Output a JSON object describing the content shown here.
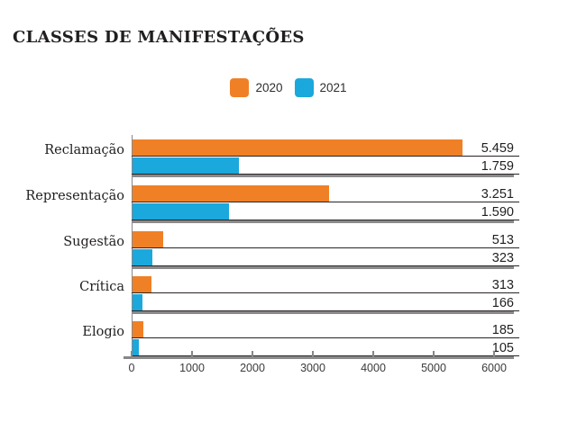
{
  "title": "CLASSES DE MANIFESTAÇÕES",
  "legend": [
    {
      "label": "2020",
      "color": "#F08026"
    },
    {
      "label": "2021",
      "color": "#1BA8DC"
    }
  ],
  "chart_data": {
    "type": "bar",
    "orientation": "horizontal",
    "title": "CLASSES DE MANIFESTAÇÕES",
    "categories": [
      "Reclamação",
      "Representação",
      "Sugestão",
      "Crítica",
      "Elogio"
    ],
    "series": [
      {
        "name": "2020",
        "color": "#F08026",
        "values": [
          5459,
          3251,
          513,
          313,
          185
        ],
        "value_labels": [
          "5.459",
          "3.251",
          "513",
          "313",
          "185"
        ]
      },
      {
        "name": "2021",
        "color": "#1BA8DC",
        "values": [
          1759,
          1590,
          323,
          166,
          105
        ],
        "value_labels": [
          "1.759",
          "1.590",
          "323",
          "166",
          "105"
        ]
      }
    ],
    "x_axis": {
      "min": 0,
      "max": 6000,
      "ticks": [
        "0",
        "1000",
        "2000",
        "3000",
        "4000",
        "5000",
        "6000"
      ]
    },
    "legend_position": "top-center",
    "grid": false
  },
  "colors": {
    "bar_2020": "#F08026",
    "bar_2021": "#1BA8DC",
    "dark_line": "#2b2523",
    "gray_line": "#8a8a8d",
    "text": "#211e1f"
  }
}
